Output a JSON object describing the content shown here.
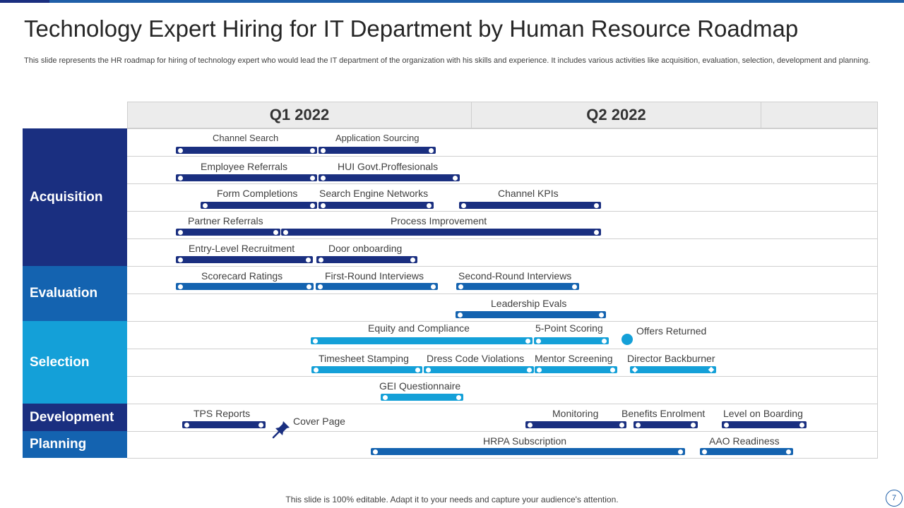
{
  "title": "Technology Expert Hiring for IT Department by Human Resource Roadmap",
  "description": "This slide represents the HR roadmap for hiring of technology expert who would lead the IT  department of the organization with his skills and experience. It includes various activities like acquisition, evaluation, selection, development and planning.",
  "quarters": [
    "Q1 2022",
    "Q2 2022"
  ],
  "categories": [
    "Acquisition",
    "Evaluation",
    "Selection",
    "Development",
    "Planning"
  ],
  "colors": {
    "navy": "#1a2f80",
    "mid_blue": "#1463b0",
    "light_blue": "#14a0d8",
    "topbar": "#1f5fa8"
  },
  "tasks": [
    "Channel  Search",
    "Application Sourcing",
    "Employee Referrals",
    "HUI  Govt.Proffesionals",
    "Form Completions",
    "Search Engine Networks",
    "Channel KPIs",
    "Partner Referrals",
    "Process Improvement",
    "Entry-Level Recruitment",
    "Door onboarding",
    "Scorecard Ratings",
    "First-Round Interviews",
    "Second-Round Interviews",
    "Leadership Evals",
    "Equity and Compliance",
    "5-Point Scoring",
    "Offers Returned",
    "Timesheet Stamping",
    "Dress Code Violations",
    "Mentor Screening",
    "Director Backburner",
    "GEI Questionnaire",
    "TPS Reports",
    "Cover Page",
    "Monitoring",
    "Benefits Enrolment",
    "Level on Boarding",
    "HRPA Subscription",
    "AAO Readiness"
  ],
  "footer": "This slide is 100% editable. Adapt it to your needs and capture your audience's attention.",
  "page_number": "7"
}
